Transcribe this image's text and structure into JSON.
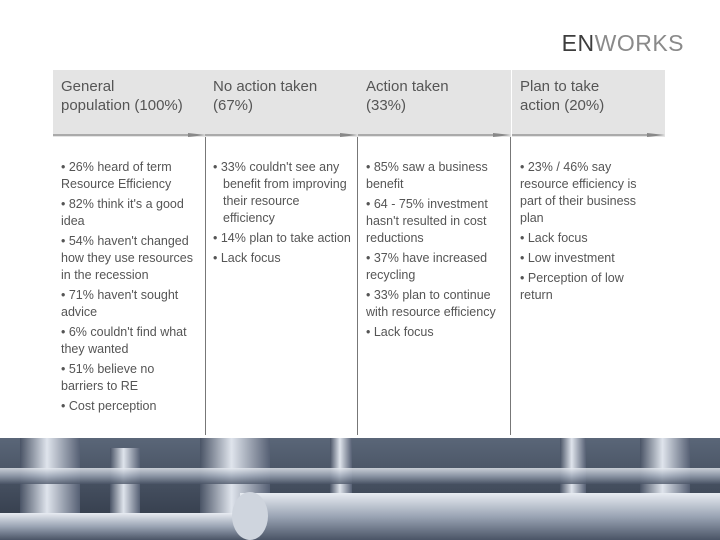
{
  "logo": {
    "strong": "EN",
    "light": "WORKS"
  },
  "columns": [
    {
      "header": [
        "General",
        "population (100%)"
      ],
      "bullets": [
        "26% heard of term Resource Efficiency",
        "82% think it's a good idea",
        "54% haven't changed how they use resources in the recession",
        "71% haven't sought advice",
        "6% couldn't find what they wanted",
        "51% believe no barriers to RE",
        "Cost perception"
      ]
    },
    {
      "header": [
        "No action taken",
        "(67%)"
      ],
      "bullets": [
        "33% couldn't see any benefit from improving their resource efficiency",
        "14% plan to take action",
        "Lack focus"
      ]
    },
    {
      "header": [
        "Action taken",
        "(33%)"
      ],
      "bullets": [
        "85% saw a business benefit",
        "64 - 75% investment hasn't resulted in cost reductions",
        "37% have increased recycling",
        "33% plan to continue with resource efficiency",
        "Lack focus"
      ]
    },
    {
      "header": [
        "Plan to take",
        "action (20%)"
      ],
      "bullets": [
        "23% / 46% say resource efficiency is part of their business plan",
        "Lack focus",
        "Low investment",
        "Perception of low return"
      ]
    }
  ]
}
